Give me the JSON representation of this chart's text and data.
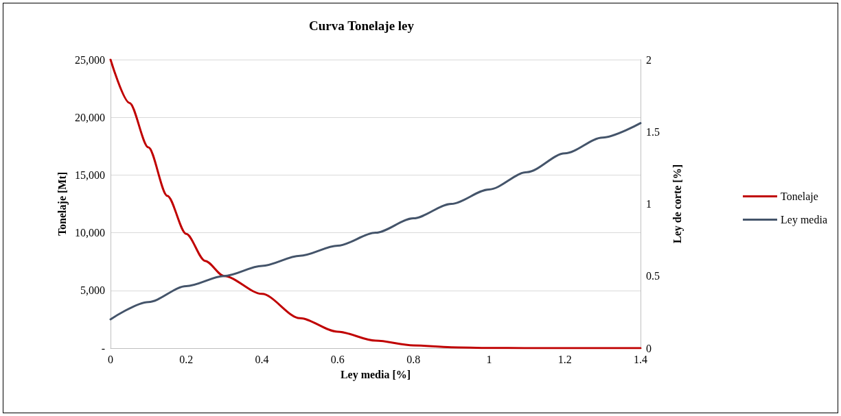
{
  "chart_data": {
    "type": "line",
    "title": "Curva Tonelaje ley",
    "xlabel": "Ley media [%]",
    "ylabel": "Tonelaje [Mt]",
    "y2label": "Ley de corte [%]",
    "xlim": [
      0,
      1.4
    ],
    "xticks": [
      0,
      0.2,
      0.4,
      0.6,
      0.8,
      1,
      1.2,
      1.4
    ],
    "ylim": [
      0,
      25000
    ],
    "yticks": [
      {
        "value": 0,
        "label": "-"
      },
      {
        "value": 5000,
        "label": "5,000"
      },
      {
        "value": 10000,
        "label": "10,000"
      },
      {
        "value": 15000,
        "label": "15,000"
      },
      {
        "value": 20000,
        "label": "20,000"
      },
      {
        "value": 25000,
        "label": "25,000"
      }
    ],
    "y2lim": [
      0,
      2
    ],
    "y2ticks": [
      0,
      0.5,
      1,
      1.5,
      2
    ],
    "grid": "y",
    "legend": "right",
    "marker": "none",
    "line_style": "solid",
    "series": [
      {
        "name": "Tonelaje",
        "color": "#c00000",
        "x": [
          0,
          0.05,
          0.1,
          0.15,
          0.2,
          0.25,
          0.3,
          0.4,
          0.5,
          0.6,
          0.7,
          0.8,
          0.9,
          1,
          1.1,
          1.2,
          1.3,
          1.4
        ],
        "values": [
          25000,
          21250,
          17400,
          13200,
          9900,
          7560,
          6250,
          4700,
          2600,
          1430,
          650,
          240,
          80,
          20,
          0,
          0,
          0,
          0
        ]
      },
      {
        "name": "Ley media",
        "color": "#44546a",
        "axis": "y2",
        "x": [
          0,
          0.1,
          0.2,
          0.3,
          0.4,
          0.5,
          0.6,
          0.7,
          0.8,
          0.9,
          1,
          1.1,
          1.2,
          1.3,
          1.4
        ],
        "values": [
          0.2,
          0.32,
          0.43,
          0.5,
          0.57,
          0.64,
          0.71,
          0.8,
          0.9,
          1.0,
          1.1,
          1.22,
          1.35,
          1.46,
          1.56
        ]
      }
    ]
  }
}
